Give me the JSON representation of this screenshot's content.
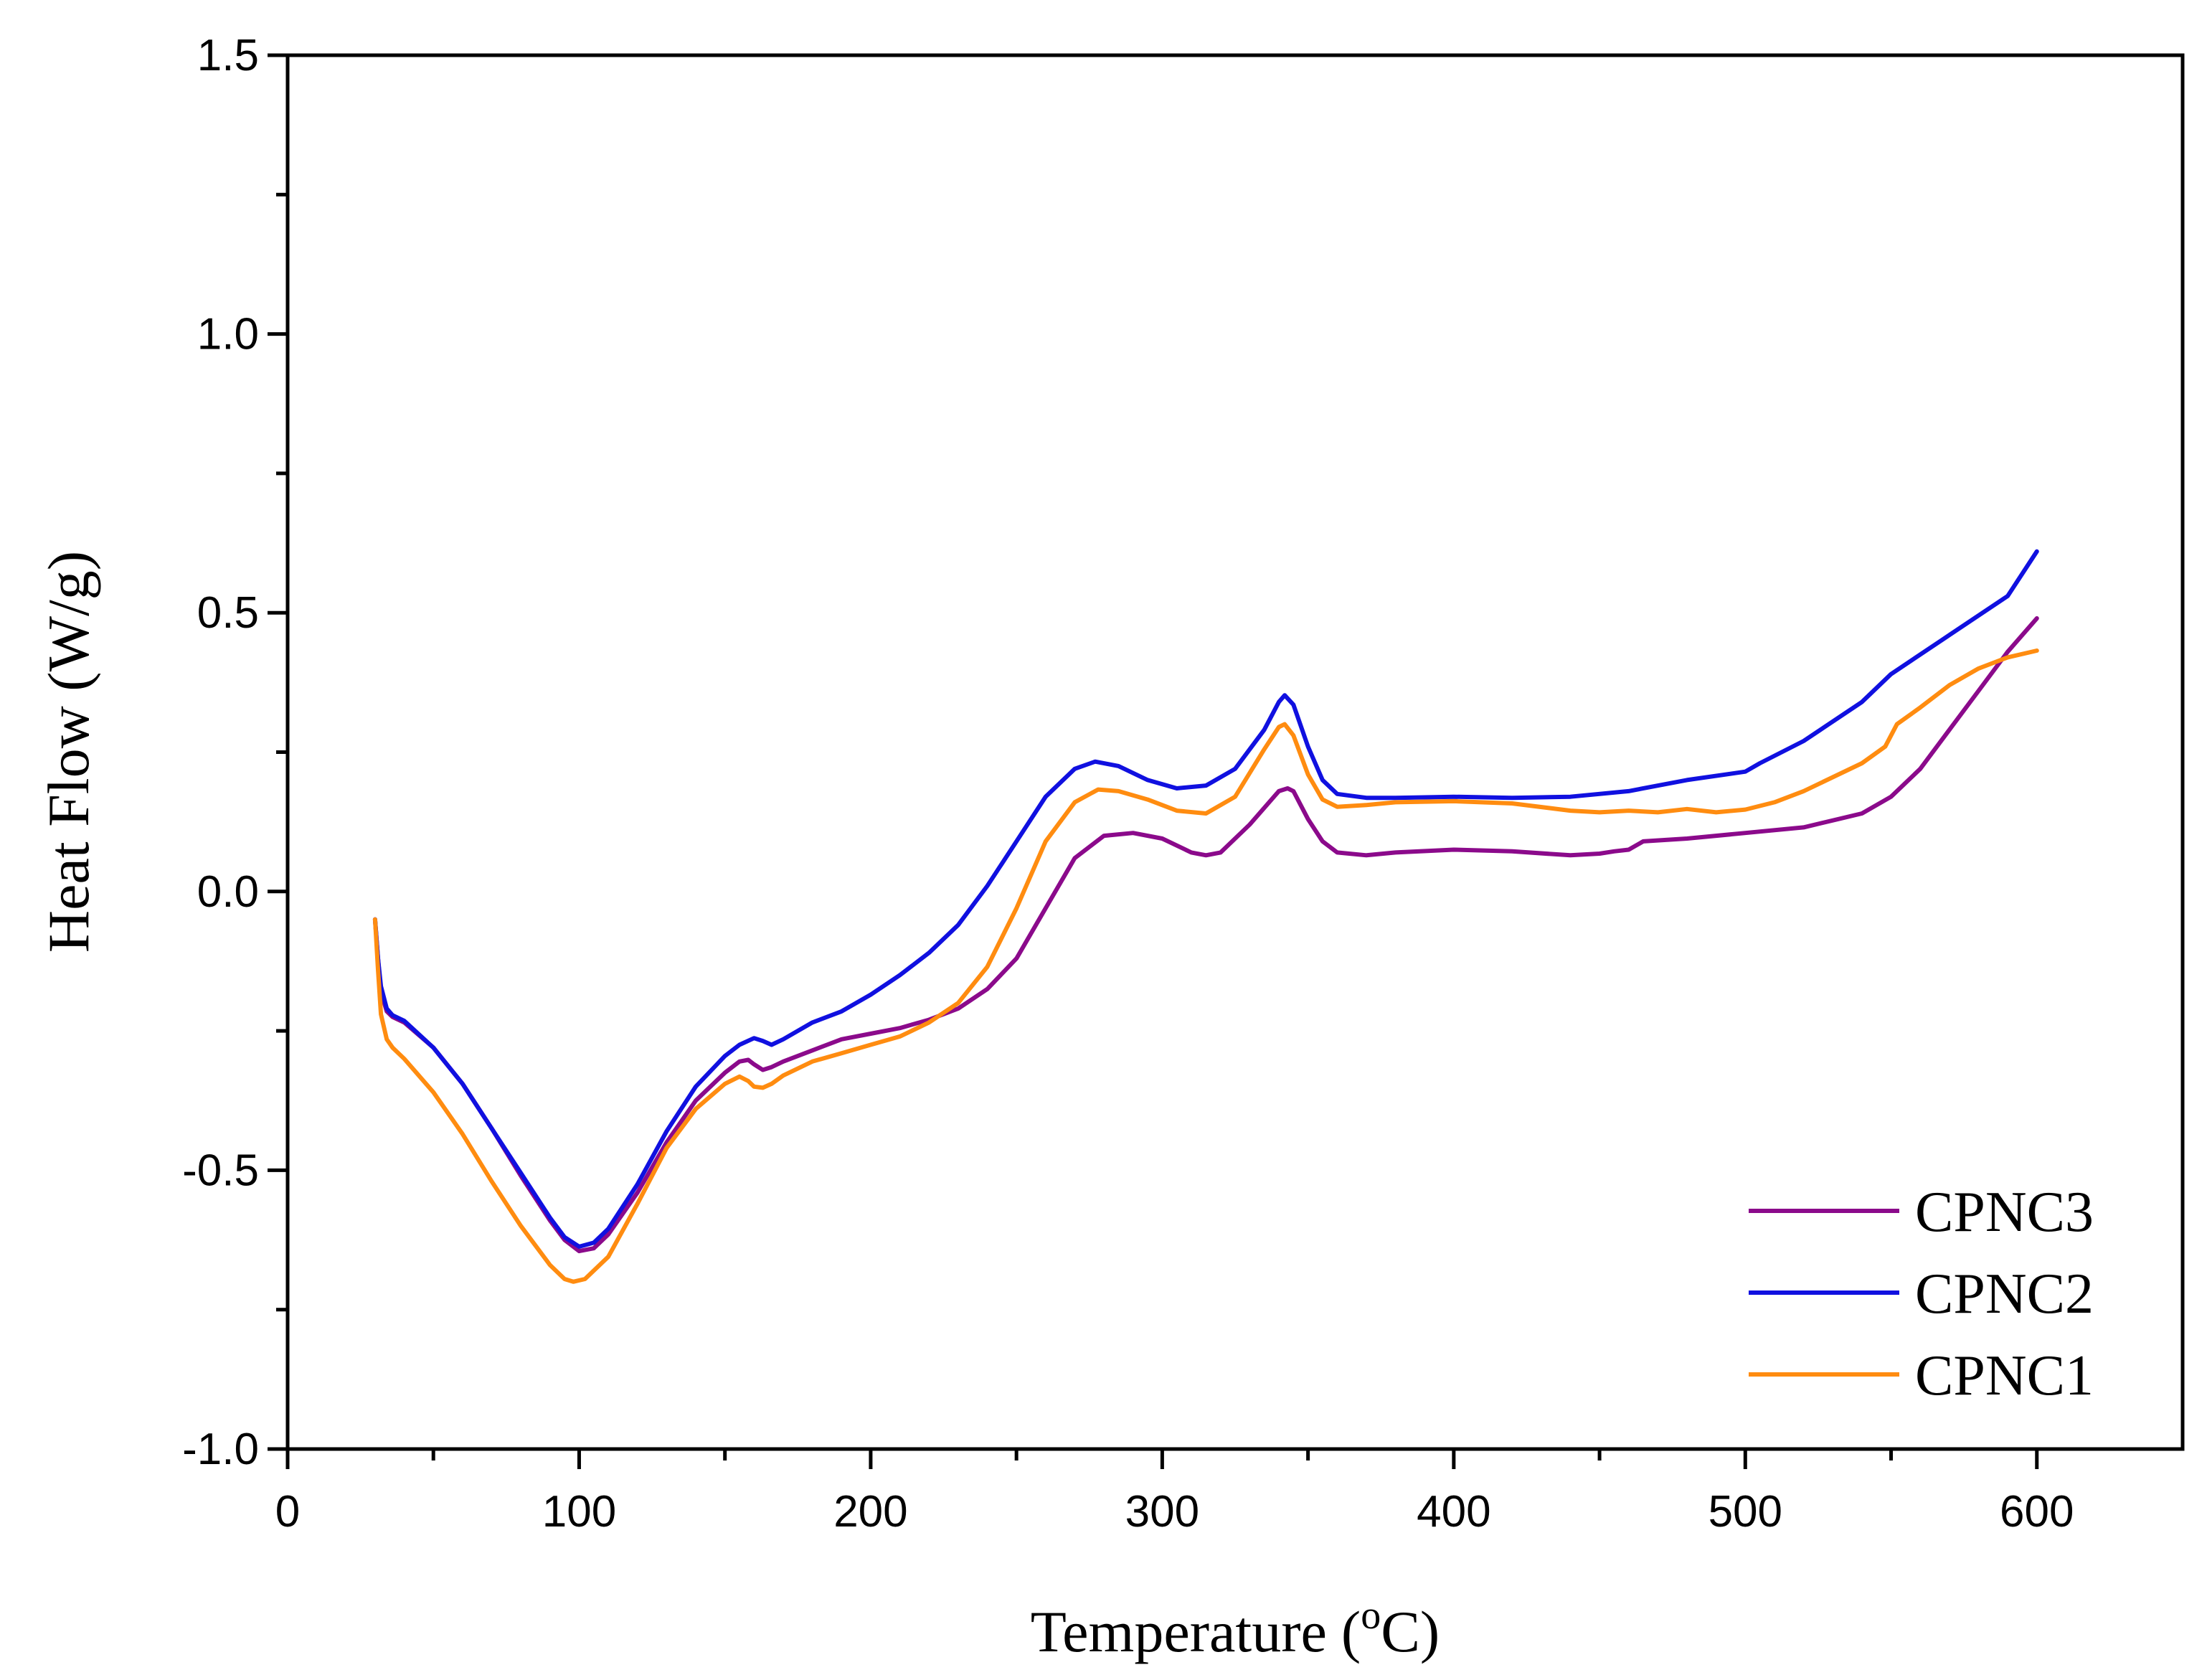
{
  "chart_data": {
    "type": "line",
    "title": "",
    "xlabel": "Temperature",
    "xlabel_unit": "(°C)",
    "xlabel_unit_parts": {
      "open": "(",
      "superscript": "o",
      "close": "C)"
    },
    "ylabel": "Heat Flow (W/g)",
    "xlim": [
      0,
      650
    ],
    "ylim": [
      -1.0,
      1.5
    ],
    "x_ticks": [
      0,
      100,
      200,
      300,
      400,
      500,
      600
    ],
    "x_tick_labels": [
      "0",
      "100",
      "200",
      "300",
      "400",
      "500",
      "600"
    ],
    "x_minor_ticks": [
      50,
      150,
      250,
      350,
      450,
      550
    ],
    "y_ticks": [
      -1.0,
      -0.5,
      0.0,
      0.5,
      1.0,
      1.5
    ],
    "y_tick_labels": [
      "-1.0",
      "-0.5",
      "0.0",
      "0.5",
      "1.0",
      "1.5"
    ],
    "y_minor_ticks": [
      -0.75,
      -0.25,
      0.25,
      0.75,
      1.25
    ],
    "grid": false,
    "legend_position": "bottom-right",
    "series": [
      {
        "name": "CPNC3",
        "color": "#8B0A8B",
        "points": [
          [
            30,
            -0.05
          ],
          [
            31,
            -0.12
          ],
          [
            32,
            -0.18
          ],
          [
            34,
            -0.215
          ],
          [
            36,
            -0.225
          ],
          [
            40,
            -0.235
          ],
          [
            50,
            -0.28
          ],
          [
            60,
            -0.345
          ],
          [
            70,
            -0.425
          ],
          [
            80,
            -0.51
          ],
          [
            90,
            -0.59
          ],
          [
            95,
            -0.625
          ],
          [
            100,
            -0.645
          ],
          [
            105,
            -0.64
          ],
          [
            110,
            -0.615
          ],
          [
            120,
            -0.54
          ],
          [
            130,
            -0.45
          ],
          [
            140,
            -0.375
          ],
          [
            150,
            -0.325
          ],
          [
            155,
            -0.305
          ],
          [
            158,
            -0.302
          ],
          [
            160,
            -0.31
          ],
          [
            163,
            -0.32
          ],
          [
            166,
            -0.315
          ],
          [
            170,
            -0.305
          ],
          [
            180,
            -0.285
          ],
          [
            190,
            -0.265
          ],
          [
            200,
            -0.255
          ],
          [
            210,
            -0.245
          ],
          [
            220,
            -0.23
          ],
          [
            230,
            -0.21
          ],
          [
            240,
            -0.175
          ],
          [
            250,
            -0.12
          ],
          [
            260,
            -0.03
          ],
          [
            270,
            0.06
          ],
          [
            280,
            0.1
          ],
          [
            290,
            0.105
          ],
          [
            300,
            0.095
          ],
          [
            310,
            0.07
          ],
          [
            315,
            0.065
          ],
          [
            320,
            0.07
          ],
          [
            330,
            0.12
          ],
          [
            340,
            0.18
          ],
          [
            343,
            0.185
          ],
          [
            345,
            0.18
          ],
          [
            350,
            0.13
          ],
          [
            355,
            0.09
          ],
          [
            360,
            0.07
          ],
          [
            370,
            0.065
          ],
          [
            380,
            0.07
          ],
          [
            400,
            0.075
          ],
          [
            420,
            0.072
          ],
          [
            440,
            0.065
          ],
          [
            450,
            0.068
          ],
          [
            455,
            0.072
          ],
          [
            460,
            0.075
          ],
          [
            465,
            0.09
          ],
          [
            480,
            0.095
          ],
          [
            500,
            0.105
          ],
          [
            520,
            0.115
          ],
          [
            540,
            0.14
          ],
          [
            550,
            0.17
          ],
          [
            560,
            0.22
          ],
          [
            570,
            0.29
          ],
          [
            580,
            0.36
          ],
          [
            590,
            0.43
          ],
          [
            600,
            0.49
          ]
        ]
      },
      {
        "name": "CPNC2",
        "color": "#1010E0",
        "points": [
          [
            30,
            -0.05
          ],
          [
            31,
            -0.12
          ],
          [
            32,
            -0.17
          ],
          [
            34,
            -0.21
          ],
          [
            36,
            -0.222
          ],
          [
            40,
            -0.232
          ],
          [
            50,
            -0.28
          ],
          [
            60,
            -0.345
          ],
          [
            70,
            -0.425
          ],
          [
            80,
            -0.505
          ],
          [
            90,
            -0.585
          ],
          [
            95,
            -0.62
          ],
          [
            100,
            -0.637
          ],
          [
            105,
            -0.63
          ],
          [
            110,
            -0.605
          ],
          [
            120,
            -0.525
          ],
          [
            130,
            -0.43
          ],
          [
            140,
            -0.35
          ],
          [
            150,
            -0.295
          ],
          [
            155,
            -0.275
          ],
          [
            160,
            -0.263
          ],
          [
            163,
            -0.268
          ],
          [
            166,
            -0.275
          ],
          [
            170,
            -0.265
          ],
          [
            180,
            -0.235
          ],
          [
            190,
            -0.215
          ],
          [
            200,
            -0.185
          ],
          [
            210,
            -0.15
          ],
          [
            220,
            -0.11
          ],
          [
            230,
            -0.06
          ],
          [
            240,
            0.01
          ],
          [
            250,
            0.09
          ],
          [
            260,
            0.17
          ],
          [
            270,
            0.22
          ],
          [
            277,
            0.233
          ],
          [
            285,
            0.225
          ],
          [
            295,
            0.2
          ],
          [
            305,
            0.185
          ],
          [
            315,
            0.19
          ],
          [
            325,
            0.22
          ],
          [
            335,
            0.29
          ],
          [
            340,
            0.34
          ],
          [
            342,
            0.352
          ],
          [
            345,
            0.335
          ],
          [
            350,
            0.26
          ],
          [
            355,
            0.2
          ],
          [
            360,
            0.175
          ],
          [
            370,
            0.168
          ],
          [
            380,
            0.168
          ],
          [
            400,
            0.17
          ],
          [
            420,
            0.168
          ],
          [
            440,
            0.17
          ],
          [
            460,
            0.18
          ],
          [
            480,
            0.2
          ],
          [
            500,
            0.215
          ],
          [
            505,
            0.23
          ],
          [
            520,
            0.27
          ],
          [
            540,
            0.34
          ],
          [
            550,
            0.39
          ],
          [
            570,
            0.46
          ],
          [
            590,
            0.53
          ],
          [
            600,
            0.61
          ]
        ]
      },
      {
        "name": "CPNC1",
        "color": "#FF8C10",
        "points": [
          [
            30,
            -0.05
          ],
          [
            31,
            -0.14
          ],
          [
            32,
            -0.22
          ],
          [
            34,
            -0.265
          ],
          [
            36,
            -0.28
          ],
          [
            40,
            -0.3
          ],
          [
            50,
            -0.36
          ],
          [
            60,
            -0.435
          ],
          [
            70,
            -0.52
          ],
          [
            80,
            -0.6
          ],
          [
            90,
            -0.67
          ],
          [
            95,
            -0.695
          ],
          [
            98,
            -0.7
          ],
          [
            102,
            -0.695
          ],
          [
            110,
            -0.655
          ],
          [
            120,
            -0.56
          ],
          [
            130,
            -0.46
          ],
          [
            140,
            -0.39
          ],
          [
            150,
            -0.345
          ],
          [
            155,
            -0.332
          ],
          [
            158,
            -0.34
          ],
          [
            160,
            -0.35
          ],
          [
            163,
            -0.352
          ],
          [
            166,
            -0.345
          ],
          [
            170,
            -0.33
          ],
          [
            180,
            -0.305
          ],
          [
            190,
            -0.29
          ],
          [
            200,
            -0.275
          ],
          [
            210,
            -0.26
          ],
          [
            220,
            -0.235
          ],
          [
            230,
            -0.2
          ],
          [
            240,
            -0.135
          ],
          [
            250,
            -0.03
          ],
          [
            260,
            0.09
          ],
          [
            270,
            0.16
          ],
          [
            278,
            0.183
          ],
          [
            285,
            0.18
          ],
          [
            295,
            0.165
          ],
          [
            305,
            0.145
          ],
          [
            315,
            0.14
          ],
          [
            325,
            0.17
          ],
          [
            335,
            0.255
          ],
          [
            340,
            0.295
          ],
          [
            342,
            0.3
          ],
          [
            345,
            0.28
          ],
          [
            350,
            0.21
          ],
          [
            355,
            0.165
          ],
          [
            360,
            0.152
          ],
          [
            370,
            0.155
          ],
          [
            380,
            0.16
          ],
          [
            400,
            0.162
          ],
          [
            420,
            0.158
          ],
          [
            440,
            0.145
          ],
          [
            450,
            0.142
          ],
          [
            460,
            0.145
          ],
          [
            470,
            0.142
          ],
          [
            480,
            0.148
          ],
          [
            490,
            0.142
          ],
          [
            500,
            0.147
          ],
          [
            510,
            0.16
          ],
          [
            520,
            0.18
          ],
          [
            540,
            0.23
          ],
          [
            548,
            0.26
          ],
          [
            552,
            0.3
          ],
          [
            560,
            0.33
          ],
          [
            570,
            0.37
          ],
          [
            580,
            0.4
          ],
          [
            590,
            0.42
          ],
          [
            600,
            0.432
          ]
        ]
      }
    ]
  }
}
